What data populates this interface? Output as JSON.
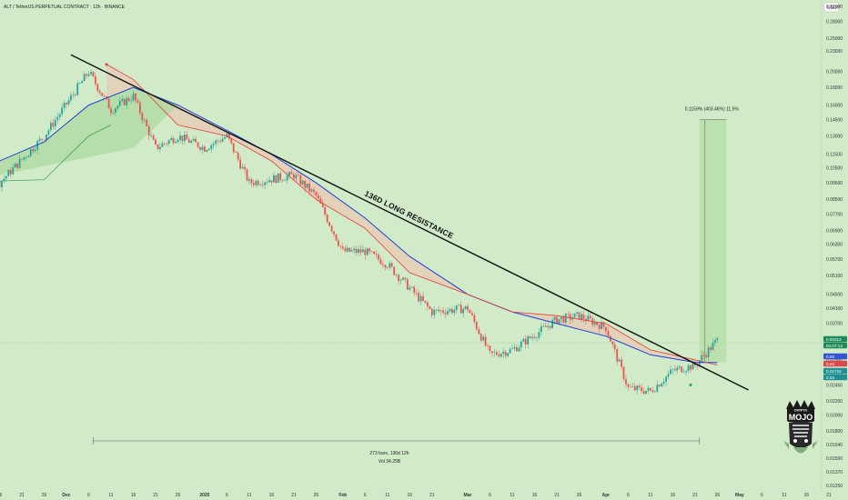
{
  "header": {
    "title": "ALT / TetherUS PERPETUAL CONTRACT · 12h · BINANCE",
    "currency": "USDT"
  },
  "chart_data": {
    "type": "line",
    "title": "ALT / TetherUS PERPETUAL CONTRACT · 12h · BINANCE",
    "scale": "log",
    "price_axis_ticks": [
      "0.31000",
      "0.28000",
      "0.25000",
      "0.23000",
      "0.20000",
      "0.18000",
      "0.16000",
      "0.14500",
      "0.13000",
      "0.11500",
      "0.10500",
      "0.09500",
      "0.08500",
      "0.07700",
      "0.06900",
      "0.06300",
      "0.05700",
      "0.05100",
      "0.04500",
      "0.04100",
      "0.03700",
      "0.03300",
      "0.02900",
      "0.02600",
      "0.02450",
      "0.02200",
      "0.02000",
      "0.01800",
      "0.01640",
      "0.01500",
      "0.01370",
      "0.01250"
    ],
    "time_axis_ticks": [
      "16",
      "21",
      "26",
      "Dec",
      "6",
      "11",
      "16",
      "21",
      "26",
      "2025",
      "6",
      "11",
      "16",
      "21",
      "26",
      "Feb",
      "6",
      "11",
      "16",
      "21",
      "Mar",
      "6",
      "11",
      "16",
      "21",
      "26",
      "Apr",
      "6",
      "11",
      "16",
      "21",
      "26",
      "May",
      "6",
      "11",
      "16",
      "21"
    ],
    "ylim": [
      0.0125,
      0.31
    ],
    "grid": false,
    "series": [
      {
        "name": "",
        "color": "#1e40d8",
        "x": [
          "Nov 16",
          "Nov 26",
          "Dec 6",
          "Dec 16",
          "Dec 26",
          "Jan 6",
          "Jan 16",
          "Jan 26",
          "Feb 6",
          "Feb 16",
          "Mar 1",
          "Mar 11",
          "Mar 21",
          "Apr 1",
          "Apr 11",
          "Apr 21",
          "Apr 26"
        ],
        "values": [
          0.11,
          0.125,
          0.16,
          0.18,
          0.16,
          0.135,
          0.115,
          0.095,
          0.075,
          0.058,
          0.045,
          0.04,
          0.037,
          0.034,
          0.03,
          0.0285,
          0.0285
        ]
      },
      {
        "name": "",
        "color": "#e63b3b",
        "x": [
          "Dec 10",
          "Dec 16",
          "Dec 26",
          "Jan 6",
          "Jan 16",
          "Jan 26",
          "Feb 6",
          "Feb 16",
          "Mar 1",
          "Mar 11",
          "Mar 21",
          "Apr 1",
          "Apr 11",
          "Apr 21",
          "Apr 26"
        ],
        "values": [
          0.21,
          0.19,
          0.14,
          0.13,
          0.11,
          0.085,
          0.07,
          0.052,
          0.045,
          0.04,
          0.039,
          0.037,
          0.031,
          0.029,
          0.028
        ]
      }
    ],
    "annotations": {
      "trendline_label": "136D LONG RESISTANCE",
      "range_label": "273 bars, 136d 12h",
      "volume_label": "Vol 34.25B",
      "target_label": "0.1159% (403.46%) 11,5%"
    },
    "price_badges": [
      {
        "label": "0.03313",
        "color": "#1b8b5a"
      },
      {
        "label": "04:07:14",
        "color": "#1b8b5a"
      },
      {
        "label": "0.03",
        "color": "#3552d9"
      },
      {
        "label": "0.03",
        "color": "#e0474c"
      },
      {
        "label": "0.02716",
        "color": "#1e8f94"
      },
      {
        "label": "0.03",
        "color": "#1e8f94"
      }
    ]
  },
  "logo": {
    "top_text": "CRYPTO",
    "main_text": "MOJO"
  }
}
